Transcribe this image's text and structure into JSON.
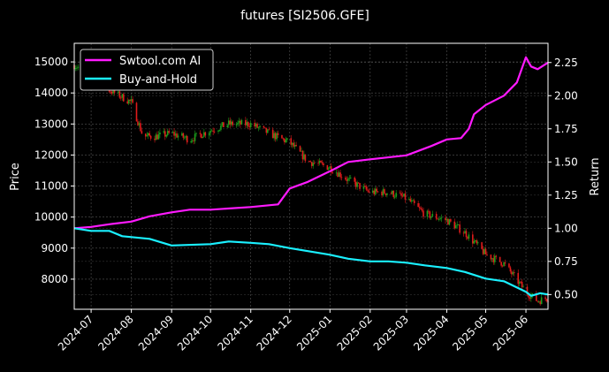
{
  "chart_data": {
    "type": "line",
    "title": "futures [SI2506.GFE]",
    "ylabel_left": "Price",
    "ylabel_right": "Return",
    "xlim": [
      "2024-06-18",
      "2025-06-18"
    ],
    "ylim_left": [
      7030,
      15600
    ],
    "ylim_right": [
      0.389,
      2.395
    ],
    "grid": true,
    "legend_placement": "top-left",
    "x_ticks": [
      "2024-07",
      "2024-08",
      "2024-09",
      "2024-10",
      "2024-11",
      "2024-12",
      "2025-01",
      "2025-02",
      "2025-03",
      "2025-04",
      "2025-05",
      "2025-06"
    ],
    "y_ticks_left": [
      8000,
      9000,
      10000,
      11000,
      12000,
      13000,
      14000,
      15000
    ],
    "y_ticks_right": [
      "0.50",
      "0.75",
      "1.00",
      "1.25",
      "1.50",
      "1.75",
      "2.00",
      "2.25"
    ],
    "colors": {
      "background": "#000000",
      "up": "#1a9e1a",
      "down": "#e01b1b",
      "strategy": "#ff1aff",
      "buyhold": "#1af0ff",
      "grid": "#555555"
    },
    "price": {
      "type": "candlestick",
      "dates": [
        "2024-06-18",
        "2024-07-01",
        "2024-07-15",
        "2024-08-01",
        "2024-08-10",
        "2024-08-20",
        "2024-09-01",
        "2024-09-15",
        "2024-10-01",
        "2024-10-15",
        "2024-11-01",
        "2024-11-15",
        "2024-12-01",
        "2024-12-15",
        "2025-01-01",
        "2025-01-15",
        "2025-02-01",
        "2025-02-15",
        "2025-03-01",
        "2025-03-15",
        "2025-04-01",
        "2025-04-15",
        "2025-05-01",
        "2025-05-15",
        "2025-06-01",
        "2025-06-10",
        "2025-06-18"
      ],
      "values": [
        14900,
        14600,
        14100,
        13700,
        12600,
        12600,
        12700,
        12500,
        12800,
        13000,
        13000,
        12700,
        12400,
        11800,
        11600,
        11200,
        10800,
        10800,
        10600,
        10100,
        9900,
        9500,
        8800,
        8500,
        7600,
        7300,
        7400
      ]
    },
    "series": [
      {
        "name": "Swtool.com AI",
        "dates": [
          "2024-06-18",
          "2024-07-01",
          "2024-07-15",
          "2024-08-01",
          "2024-08-15",
          "2024-09-01",
          "2024-09-15",
          "2024-10-01",
          "2024-11-01",
          "2024-11-22",
          "2024-12-01",
          "2024-12-15",
          "2025-01-01",
          "2025-01-15",
          "2025-02-01",
          "2025-03-01",
          "2025-03-20",
          "2025-04-01",
          "2025-04-12",
          "2025-04-18",
          "2025-04-22",
          "2025-05-01",
          "2025-05-15",
          "2025-05-25",
          "2025-06-01",
          "2025-06-05",
          "2025-06-10",
          "2025-06-18"
        ],
        "values": [
          1.0,
          1.01,
          1.03,
          1.05,
          1.09,
          1.12,
          1.14,
          1.14,
          1.16,
          1.18,
          1.3,
          1.35,
          1.43,
          1.5,
          1.52,
          1.55,
          1.62,
          1.67,
          1.68,
          1.75,
          1.86,
          1.93,
          2.0,
          2.1,
          2.29,
          2.22,
          2.2,
          2.25
        ]
      },
      {
        "name": "Buy-and-Hold",
        "dates": [
          "2024-06-18",
          "2024-07-01",
          "2024-07-15",
          "2024-07-25",
          "2024-08-15",
          "2024-09-01",
          "2024-10-01",
          "2024-10-15",
          "2024-11-01",
          "2024-11-15",
          "2024-12-01",
          "2025-01-01",
          "2025-01-15",
          "2025-02-01",
          "2025-02-15",
          "2025-03-01",
          "2025-03-15",
          "2025-04-01",
          "2025-04-15",
          "2025-05-01",
          "2025-05-15",
          "2025-06-01",
          "2025-06-05",
          "2025-06-12",
          "2025-06-18"
        ],
        "values": [
          1.0,
          0.98,
          0.98,
          0.94,
          0.92,
          0.87,
          0.88,
          0.9,
          0.89,
          0.88,
          0.85,
          0.8,
          0.77,
          0.75,
          0.75,
          0.74,
          0.72,
          0.7,
          0.67,
          0.62,
          0.6,
          0.52,
          0.49,
          0.51,
          0.5
        ]
      }
    ]
  }
}
